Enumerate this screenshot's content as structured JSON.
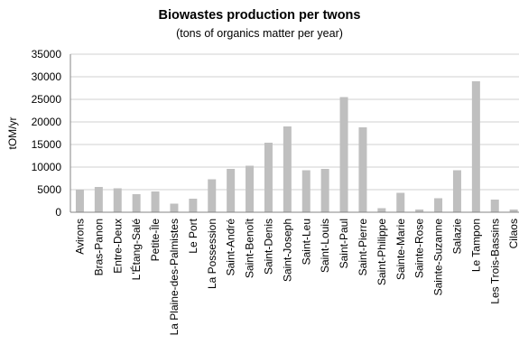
{
  "chart_data": {
    "type": "bar",
    "title": "Biowastes production per twons",
    "subtitle": "(tons of organics matter per year)",
    "xlabel": "",
    "ylabel": "tOM/yr",
    "ylim": [
      0,
      35000
    ],
    "yticks": [
      0,
      5000,
      10000,
      15000,
      20000,
      25000,
      30000,
      35000
    ],
    "grid": true,
    "bar_color": "#bfbfbf",
    "grid_color": "#d0d0d0",
    "categories": [
      "Avirons",
      "Bras-Panon",
      "Entre-Deux",
      "L'Étang-Salé",
      "Petite-Île",
      "La Plaine-des-Palmistes",
      "Le Port",
      "La Possession",
      "Saint-André",
      "Saint-Benoît",
      "Saint-Denis",
      "Saint-Joseph",
      "Saint-Leu",
      "Saint-Louis",
      "Saint-Paul",
      "Saint-Pierre",
      "Saint-Philippe",
      "Sainte-Marie",
      "Sainte-Rose",
      "Sainte-Suzanne",
      "Salazie",
      "Le Tampon",
      "Les Trois-Bassins",
      "Cilaos"
    ],
    "values": [
      5000,
      5600,
      5300,
      4000,
      4600,
      1900,
      3000,
      7300,
      9600,
      10300,
      15400,
      19000,
      9300,
      9600,
      25500,
      18800,
      900,
      4300,
      600,
      3100,
      9300,
      29000,
      2800,
      600
    ]
  }
}
